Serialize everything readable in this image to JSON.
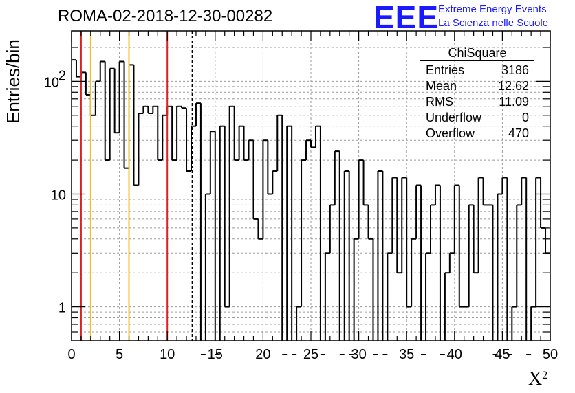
{
  "header": {
    "title": "ROMA-02-2018-12-30-00282",
    "logo_letters": "EEE",
    "logo_line1": "Extreme Energy Events",
    "logo_line2": "La Scienza nelle Scuole"
  },
  "stats": {
    "title": "ChiSquare",
    "rows": [
      {
        "label": "Entries",
        "value": "3186"
      },
      {
        "label": "Mean",
        "value": "12.62"
      },
      {
        "label": "RMS",
        "value": "11.09"
      },
      {
        "label": "Underflow",
        "value": "0"
      },
      {
        "label": "Overflow",
        "value": "470"
      }
    ]
  },
  "chart_data": {
    "type": "histogram",
    "xlabel": "X",
    "xlabel_superscript": "2",
    "ylabel": "Entries/bin",
    "xlim": [
      0,
      50
    ],
    "ylim": [
      0.5,
      280
    ],
    "log_y": true,
    "grid": true,
    "bin_width": 0.5,
    "x_ticks": [
      "0",
      "5",
      "10",
      "15",
      "20",
      "25",
      "30",
      "35",
      "40",
      "45",
      "50"
    ],
    "y_ticks": [
      {
        "value": 1,
        "label": "1"
      },
      {
        "value": 10,
        "label": "10"
      },
      {
        "value": 100,
        "label": "10",
        "exp": "2"
      }
    ],
    "values": [
      155,
      110,
      120,
      76,
      50,
      100,
      150,
      20,
      130,
      35,
      150,
      17,
      140,
      12,
      52,
      60,
      52,
      60,
      20,
      50,
      60,
      20,
      60,
      58,
      16,
      40,
      64,
      0,
      10,
      36,
      0,
      40,
      1,
      60,
      20,
      40,
      20,
      30,
      6,
      4,
      30,
      10,
      16,
      50,
      0,
      40,
      0,
      1,
      20,
      30,
      26,
      40,
      0,
      3,
      8,
      24,
      0,
      16,
      0,
      4,
      20,
      8,
      4,
      0,
      16,
      0,
      3,
      14,
      2,
      14,
      1,
      4,
      12,
      0,
      3,
      8,
      12,
      0,
      2,
      3,
      12,
      1,
      1,
      8,
      2,
      14,
      8,
      8,
      0,
      10,
      14,
      0,
      1,
      8,
      14,
      0,
      1,
      14,
      5,
      3
    ],
    "vlines": [
      {
        "x": 1,
        "color": "#e02020",
        "style": "solid"
      },
      {
        "x": 2,
        "color": "#f0c020",
        "style": "solid"
      },
      {
        "x": 6,
        "color": "#f0c020",
        "style": "solid"
      },
      {
        "x": 10,
        "color": "#e02020",
        "style": "solid"
      },
      {
        "x": 12.62,
        "color": "#000000",
        "style": "dashed"
      }
    ]
  }
}
